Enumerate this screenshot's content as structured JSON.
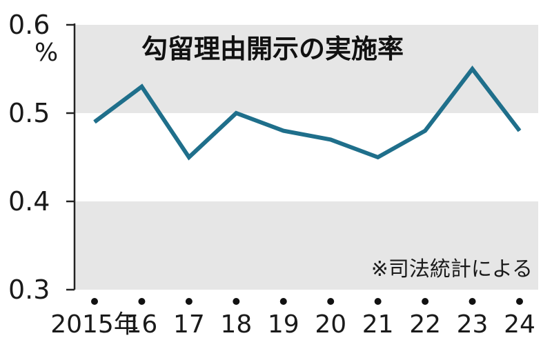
{
  "chart_data": {
    "type": "line",
    "title": "勾留理由開示の実施率",
    "unit": "%",
    "source": "※司法統計による",
    "x": [
      "2015年",
      "16",
      "17",
      "18",
      "19",
      "20",
      "21",
      "22",
      "23",
      "24"
    ],
    "series": [
      {
        "values": [
          0.49,
          0.53,
          0.45,
          0.5,
          0.48,
          0.47,
          0.45,
          0.48,
          0.55,
          0.48
        ]
      }
    ],
    "yticks": [
      "0.3",
      "0.4",
      "0.5",
      "0.6"
    ],
    "ylim": [
      0.3,
      0.6
    ],
    "grid": "alternating horizontal bands",
    "line_color": "#1f6f8b",
    "band_color": "#e6e6e6"
  }
}
